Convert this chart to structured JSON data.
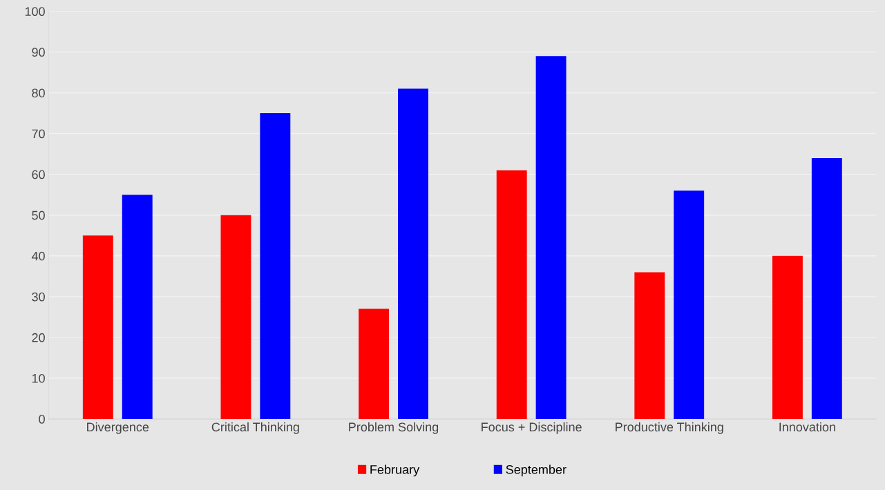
{
  "chart_data": {
    "type": "bar",
    "categories": [
      "Divergence",
      "Critical Thinking",
      "Problem Solving",
      "Focus + Discipline",
      "Productive Thinking",
      "Innovation"
    ],
    "series": [
      {
        "name": "February",
        "color": "#ff0000",
        "values": [
          45,
          50,
          27,
          61,
          36,
          40
        ]
      },
      {
        "name": "September",
        "color": "#0000ff",
        "values": [
          55,
          75,
          81,
          89,
          56,
          64
        ]
      }
    ],
    "ylim": [
      0,
      100
    ],
    "yticks": [
      0,
      10,
      20,
      30,
      40,
      50,
      60,
      70,
      80,
      90,
      100
    ],
    "grid": "y",
    "legend": "bottom"
  }
}
